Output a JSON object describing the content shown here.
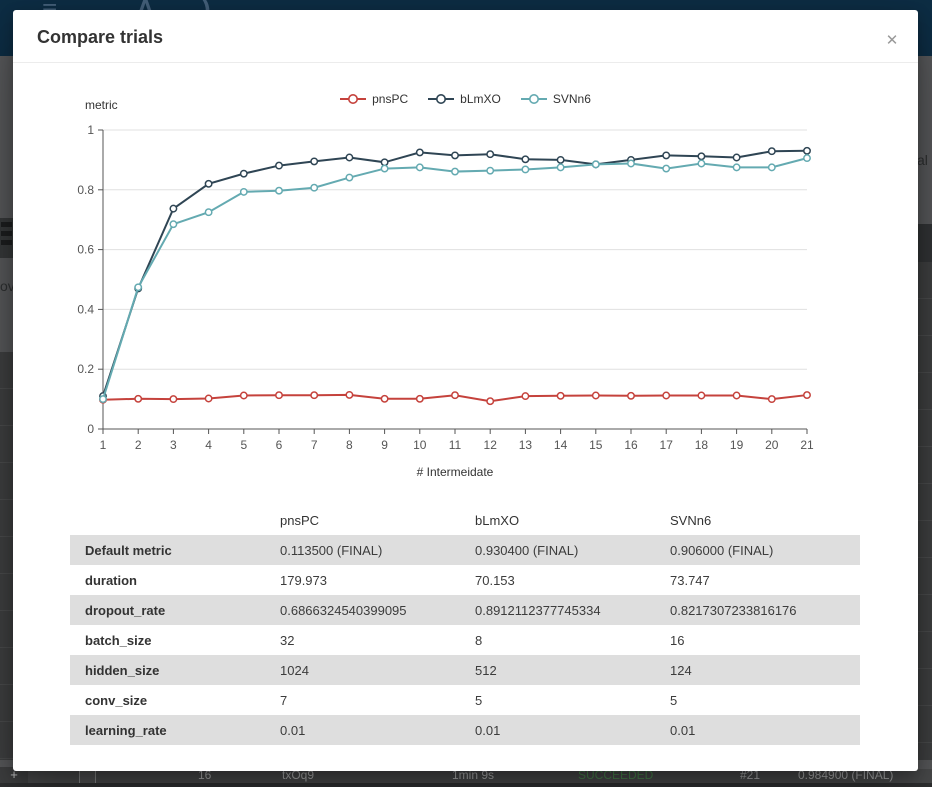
{
  "dialog": {
    "title": "Compare trials",
    "close_glyph": "✕"
  },
  "chart_data": {
    "type": "line",
    "title": "",
    "ylabel": "metric",
    "xlabel": "# Intermeidate",
    "x": [
      1,
      2,
      3,
      4,
      5,
      6,
      7,
      8,
      9,
      10,
      11,
      12,
      13,
      14,
      15,
      16,
      17,
      18,
      19,
      20,
      21
    ],
    "ylim": [
      0,
      1
    ],
    "yticks": [
      0,
      0.2,
      0.4,
      0.6,
      0.8,
      1
    ],
    "grid": true,
    "legend_position": "top",
    "series": [
      {
        "name": "pnsPC",
        "color": "#c5423c",
        "values": [
          0.098,
          0.101,
          0.1,
          0.102,
          0.112,
          0.113,
          0.113,
          0.114,
          0.101,
          0.101,
          0.113,
          0.093,
          0.11,
          0.111,
          0.112,
          0.111,
          0.112,
          0.112,
          0.112,
          0.1,
          0.1135
        ]
      },
      {
        "name": "bLmXO",
        "color": "#2f4554",
        "values": [
          0.11,
          0.47,
          0.737,
          0.82,
          0.854,
          0.881,
          0.895,
          0.908,
          0.892,
          0.925,
          0.915,
          0.919,
          0.902,
          0.9,
          0.885,
          0.9,
          0.915,
          0.912,
          0.908,
          0.929,
          0.9304
        ]
      },
      {
        "name": "SVNn6",
        "color": "#64aab1",
        "values": [
          0.1,
          0.474,
          0.685,
          0.725,
          0.793,
          0.797,
          0.807,
          0.841,
          0.871,
          0.875,
          0.861,
          0.864,
          0.868,
          0.875,
          0.885,
          0.888,
          0.871,
          0.888,
          0.875,
          0.875,
          0.906
        ]
      }
    ]
  },
  "comparison_table": {
    "columns": [
      "",
      "pnsPC",
      "bLmXO",
      "SVNn6"
    ],
    "rows": [
      {
        "label": "Default metric",
        "values": [
          "0.113500 (FINAL)",
          "0.930400 (FINAL)",
          "0.906000 (FINAL)"
        ]
      },
      {
        "label": "duration",
        "values": [
          "179.973",
          "70.153",
          "73.747"
        ]
      },
      {
        "label": "dropout_rate",
        "values": [
          "0.6866324540399095",
          "0.8912112377745334",
          "0.8217307233816176"
        ]
      },
      {
        "label": "batch_size",
        "values": [
          "32",
          "8",
          "16"
        ]
      },
      {
        "label": "hidden_size",
        "values": [
          "1024",
          "512",
          "124"
        ]
      },
      {
        "label": "conv_size",
        "values": [
          "7",
          "5",
          "5"
        ]
      },
      {
        "label": "learning_rate",
        "values": [
          "0.01",
          "0.01",
          "0.01"
        ]
      }
    ]
  },
  "app_background": {
    "nav_fragment_left": "ov",
    "nav_fragment_right": "al",
    "bottom_row": {
      "add_label": "+",
      "cells": [
        "16",
        "txOq9",
        "1min 9s",
        "SUCCEEDED",
        "#21",
        "0.984900 (FINAL)"
      ],
      "succeeded_color": "#4c8a50"
    }
  }
}
